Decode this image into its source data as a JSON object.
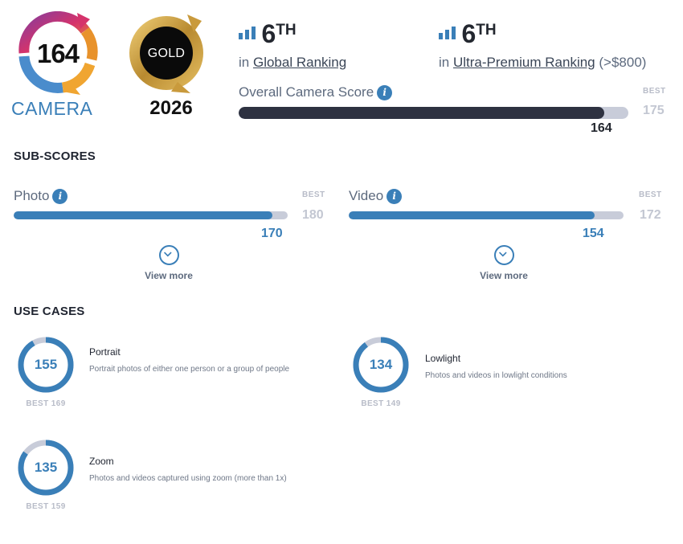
{
  "badge": {
    "score": "164",
    "category": "CAMERA",
    "award": "GOLD",
    "year": "2026"
  },
  "rankings": {
    "global": {
      "rank_number": "6",
      "rank_suffix": "TH",
      "prefix": "in",
      "link": "Global Ranking"
    },
    "segment": {
      "rank_number": "6",
      "rank_suffix": "TH",
      "prefix": "in",
      "link": "Ultra-Premium Ranking",
      "note": "(>$800)"
    }
  },
  "overall": {
    "label": "Overall Camera Score",
    "score": 164,
    "score_text": "164",
    "best_label": "BEST",
    "best": 175,
    "best_text": "175"
  },
  "subscores": {
    "title": "SUB-SCORES",
    "items": [
      {
        "label": "Photo",
        "score": 170,
        "score_text": "170",
        "best_label": "BEST",
        "best": 180,
        "best_text": "180",
        "view_more": "View more"
      },
      {
        "label": "Video",
        "score": 154,
        "score_text": "154",
        "best_label": "BEST",
        "best": 172,
        "best_text": "172",
        "view_more": "View more"
      }
    ]
  },
  "use_cases": {
    "title": "USE CASES",
    "items": [
      {
        "name": "Portrait",
        "score": 155,
        "score_text": "155",
        "best": 169,
        "best_text": "BEST 169",
        "description": "Portrait photos of either one person or a group of people"
      },
      {
        "name": "Lowlight",
        "score": 134,
        "score_text": "134",
        "best": 149,
        "best_text": "BEST 149",
        "description": "Photos and videos in lowlight conditions"
      },
      {
        "name": "Zoom",
        "score": 135,
        "score_text": "135",
        "best": 159,
        "best_text": "BEST 159",
        "description": "Photos and videos captured using zoom (more than 1x)"
      }
    ]
  },
  "colors": {
    "accent": "#3a7fb8",
    "dark_bar": "#2e3241",
    "track": "#c8ccd9",
    "gold": "#c9a24a"
  },
  "icons": {
    "rank": "bar-chart-icon",
    "info": "info-icon",
    "view_more": "chevron-down-icon"
  }
}
